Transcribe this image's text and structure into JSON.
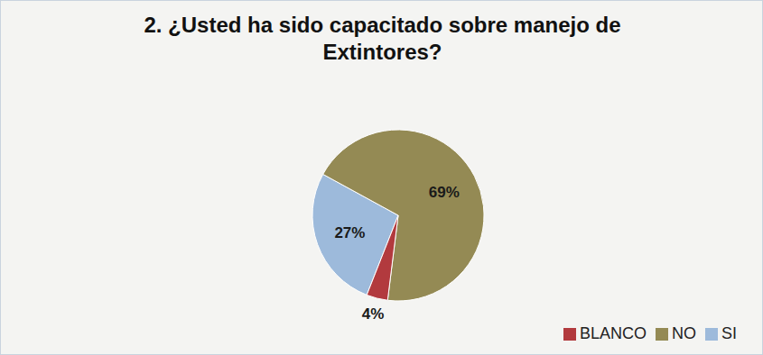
{
  "chart_data": {
    "type": "pie",
    "title": "2. ¿Usted ha sido capacitado sobre manejo de Extintores?",
    "categories": [
      "SI",
      "NO",
      "BLANCO"
    ],
    "values": [
      27,
      69,
      4
    ],
    "value_labels": [
      "27%",
      "69%",
      "4%"
    ],
    "colors": [
      "#9dbadb",
      "#948a54",
      "#b23a3e"
    ],
    "data_labels": true,
    "legend": "lower right"
  }
}
